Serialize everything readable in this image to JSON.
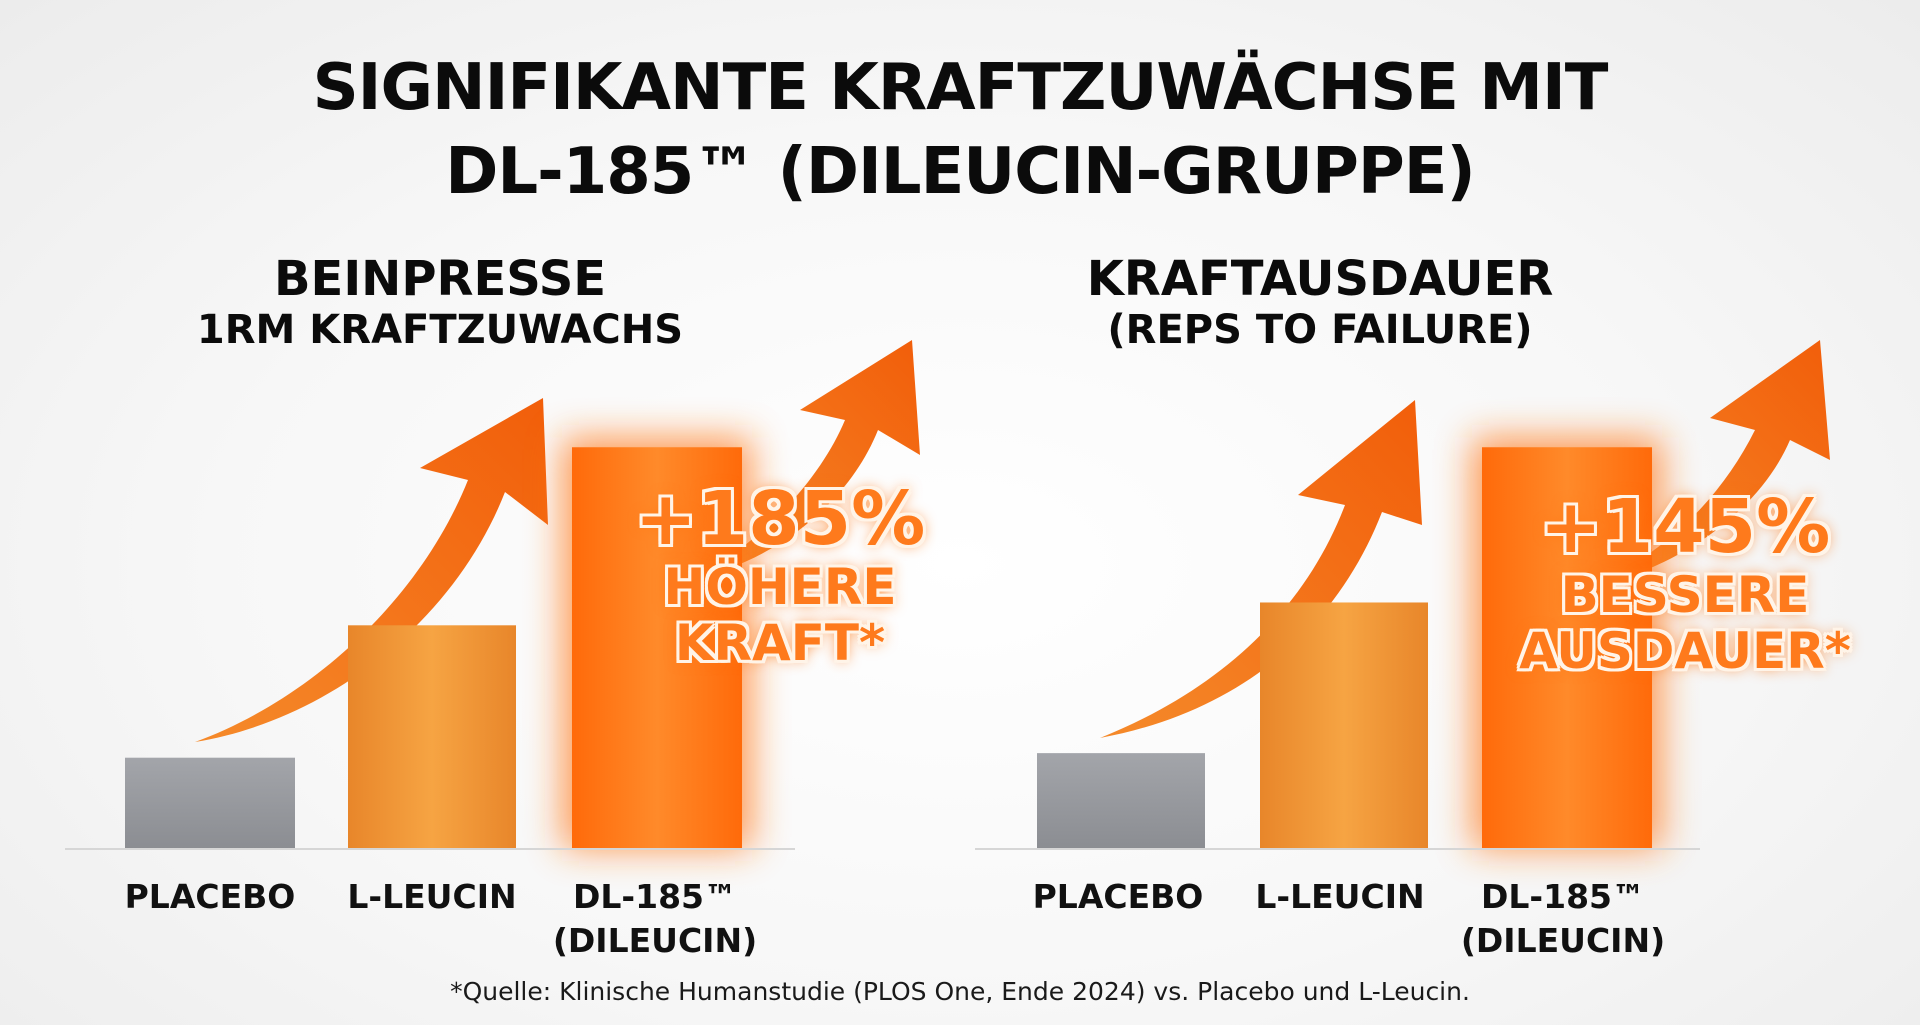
{
  "title": {
    "line1": "SIGNIFIKANTE KRAFTZUWÄCHSE MIT",
    "line2": "DL-185™ (DILEUCIN-GRUPPE)"
  },
  "colors": {
    "placebo": "#9a9ca1",
    "l_leucin": "#f2962f",
    "dl185": "#ff6a0a",
    "arrow": "#f46c12",
    "callout": "#fe7a1c"
  },
  "chart_data": [
    {
      "type": "bar",
      "title": "BEINPRESSE",
      "subtitle": "1RM KRAFTZUWACHS",
      "categories": [
        "PLACEBO",
        "L-LEUCIN",
        "DL-185™ (DILEUCIN)"
      ],
      "category_lines": [
        [
          "PLACEBO"
        ],
        [
          "L-LEUCIN"
        ],
        [
          "DL-185™",
          "(DILEUCIN)"
        ]
      ],
      "values": [
        100,
        245,
        440
      ],
      "ylim": [
        0,
        460
      ],
      "axis_labels_visible": false,
      "grid": false,
      "callout": {
        "value": "+185%",
        "text_lines": [
          "HÖHERE",
          "KRAFT*"
        ]
      }
    },
    {
      "type": "bar",
      "title": "KRAFTAUSDAUER",
      "subtitle": "(REPS TO FAILURE)",
      "categories": [
        "PLACEBO",
        "L-LEUCIN",
        "DL-185™ (DILEUCIN)"
      ],
      "category_lines": [
        [
          "PLACEBO"
        ],
        [
          "L-LEUCIN"
        ],
        [
          "DL-185™",
          "(DILEUCIN)"
        ]
      ],
      "values": [
        105,
        270,
        440
      ],
      "ylim": [
        0,
        460
      ],
      "axis_labels_visible": false,
      "grid": false,
      "callout": {
        "value": "+145%",
        "text_lines": [
          "BESSERE",
          "AUSDAUER*"
        ]
      }
    }
  ],
  "footnote": "*Quelle: Klinische Humanstudie (PLOS One, Ende 2024) vs. Placebo und L-Leucin."
}
